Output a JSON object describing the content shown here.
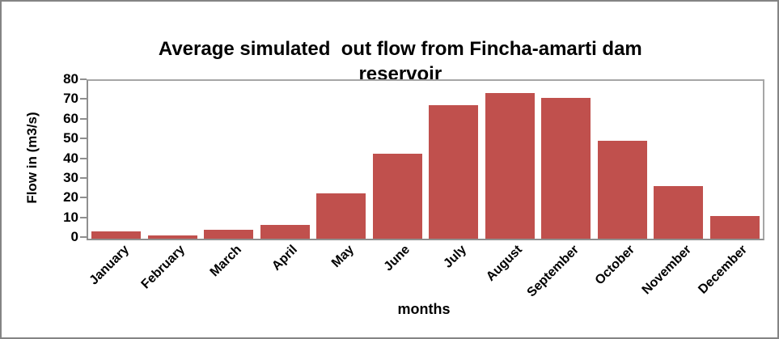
{
  "chart_data": {
    "type": "bar",
    "title": "Average simulated  out flow from Fincha-amarti dam reservoir",
    "xlabel": "months",
    "ylabel": "Flow in (m3/s)",
    "categories": [
      "January",
      "February",
      "March",
      "April",
      "May",
      "June",
      "July",
      "August",
      "September",
      "October",
      "November",
      "December"
    ],
    "values": [
      3.5,
      1.5,
      4.5,
      7,
      23,
      43,
      67.5,
      74,
      71.5,
      49.5,
      26.5,
      11.5
    ],
    "ylim": [
      0,
      80
    ],
    "yticks": [
      0,
      10,
      20,
      30,
      40,
      50,
      60,
      70,
      80
    ],
    "grid": false,
    "legend_position": "none",
    "bar_color": "#C0504D",
    "axis_color": "#8f8f8f"
  }
}
